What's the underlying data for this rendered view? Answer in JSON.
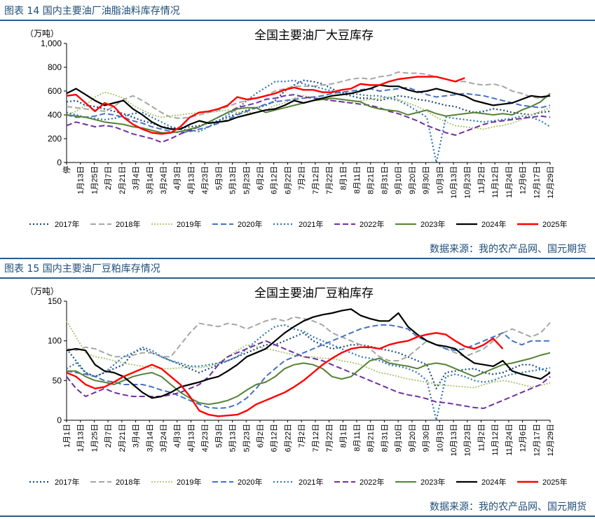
{
  "figures": [
    {
      "header": "图表 14 国内主要油厂油脂油料库存情况",
      "source": "数据来源：我的农产品网、国元期货"
    },
    {
      "header": "图表 15 国内主要油厂豆粕库存情况",
      "source": "数据来源：我的农产品网、国元期货"
    }
  ],
  "colors": {
    "2017年": "#1f4e79",
    "2018年": "#a6a6a6",
    "2019年": "#a9c26a",
    "2020年": "#4472c4",
    "2021年": "#2e75b6",
    "2022年": "#7030a0",
    "2023年": "#548235",
    "2024年": "#000000",
    "2025年": "#ff0000"
  },
  "chart_data": [
    {
      "type": "line",
      "title": "全国主要油厂大豆库存",
      "unit": "（万吨）",
      "ylim": [
        0,
        1000
      ],
      "yticks": [
        "0",
        "200",
        "400",
        "600",
        "800",
        "1,000"
      ],
      "ytick_values": [
        0,
        200,
        400,
        600,
        800,
        1000
      ],
      "x_count": 52,
      "xtick_labels": [
        "停",
        "1月13日",
        "1月25日",
        "2月7日",
        "2月21日",
        "3月4日",
        "3月14日",
        "3月24日",
        "4月3日",
        "4月13日",
        "4月23日",
        "5月3日",
        "5月13日",
        "5月23日",
        "6月2日",
        "6月12日",
        "6月22日",
        "7月2日",
        "7月12日",
        "7月22日",
        "8月1日",
        "8月11日",
        "8月21日",
        "8月31日",
        "9月10日",
        "9月20日",
        "9月30日",
        "10月3日",
        "10月13日",
        "10月23日",
        "11月2日",
        "11月12日",
        "11月24日",
        "12月6日",
        "12月17日",
        "12月29日"
      ],
      "series": [
        {
          "name": "2017年",
          "values": [
            510,
            520,
            480,
            470,
            450,
            430,
            410,
            380,
            350,
            330,
            300,
            290,
            290,
            300,
            310,
            330,
            350,
            380,
            410,
            440,
            460,
            480,
            520,
            600,
            650,
            690,
            680,
            660,
            620,
            580,
            560,
            540,
            540,
            520,
            540,
            560,
            550,
            530,
            520,
            500,
            480,
            470,
            440,
            420,
            430,
            450,
            440,
            420,
            410,
            400,
            420,
            430
          ]
        },
        {
          "name": "2018年",
          "values": [
            470,
            460,
            450,
            440,
            430,
            470,
            530,
            560,
            520,
            470,
            420,
            380,
            370,
            380,
            400,
            420,
            440,
            470,
            500,
            520,
            540,
            560,
            600,
            620,
            640,
            640,
            640,
            650,
            660,
            680,
            700,
            710,
            700,
            720,
            730,
            760,
            750,
            750,
            740,
            720,
            700,
            680,
            680,
            660,
            650,
            660,
            640,
            600,
            580,
            550,
            540,
            560
          ]
        },
        {
          "name": "2019年",
          "values": [
            400,
            430,
            480,
            550,
            590,
            570,
            540,
            480,
            440,
            400,
            380,
            390,
            400,
            410,
            420,
            420,
            430,
            440,
            420,
            420,
            420,
            440,
            480,
            500,
            540,
            560,
            550,
            540,
            520,
            510,
            500,
            520,
            530,
            540,
            550,
            530,
            500,
            470,
            430,
            380,
            340,
            310,
            300,
            290,
            280,
            300,
            310,
            330,
            360,
            400,
            430,
            460
          ]
        },
        {
          "name": "2020年",
          "values": [
            400,
            380,
            380,
            390,
            410,
            400,
            380,
            350,
            330,
            300,
            280,
            260,
            250,
            260,
            280,
            300,
            330,
            360,
            400,
            430,
            460,
            490,
            510,
            520,
            530,
            540,
            550,
            560,
            580,
            590,
            600,
            610,
            620,
            600,
            610,
            620,
            630,
            600,
            570,
            550,
            560,
            570,
            580,
            570,
            560,
            540,
            520,
            500,
            480,
            470,
            460,
            480
          ]
        },
        {
          "name": "2021年",
          "values": [
            420,
            400,
            380,
            370,
            360,
            370,
            390,
            410,
            420,
            380,
            340,
            300,
            280,
            270,
            260,
            300,
            350,
            400,
            450,
            520,
            580,
            630,
            680,
            680,
            690,
            660,
            640,
            620,
            600,
            590,
            580,
            570,
            560,
            560,
            540,
            520,
            480,
            430,
            380,
            0,
            380,
            370,
            360,
            350,
            340,
            350,
            360,
            370,
            390,
            380,
            350,
            300
          ]
        },
        {
          "name": "2022年",
          "values": [
            310,
            340,
            320,
            300,
            310,
            300,
            270,
            240,
            220,
            200,
            170,
            200,
            240,
            270,
            300,
            340,
            380,
            420,
            460,
            480,
            500,
            530,
            540,
            560,
            570,
            550,
            540,
            530,
            520,
            510,
            500,
            490,
            480,
            460,
            430,
            410,
            380,
            350,
            310,
            280,
            250,
            230,
            260,
            290,
            320,
            340,
            350,
            360,
            370,
            380,
            390,
            380
          ]
        },
        {
          "name": "2023年",
          "values": [
            400,
            390,
            380,
            360,
            340,
            330,
            320,
            300,
            290,
            270,
            250,
            250,
            260,
            280,
            300,
            340,
            380,
            420,
            450,
            460,
            460,
            420,
            440,
            460,
            480,
            500,
            520,
            530,
            540,
            530,
            520,
            510,
            470,
            450,
            440,
            430,
            400,
            420,
            440,
            410,
            390,
            400,
            410,
            420,
            410,
            400,
            410,
            400,
            440,
            470,
            510,
            580
          ]
        },
        {
          "name": "2024年",
          "values": [
            580,
            620,
            570,
            520,
            480,
            500,
            520,
            450,
            400,
            340,
            300,
            280,
            280,
            320,
            350,
            330,
            340,
            350,
            380,
            400,
            420,
            440,
            450,
            480,
            520,
            500,
            520,
            540,
            560,
            570,
            580,
            600,
            620,
            650,
            640,
            640,
            610,
            590,
            600,
            620,
            600,
            580,
            560,
            520,
            500,
            480,
            490,
            500,
            530,
            560,
            550,
            560
          ]
        },
        {
          "name": "2025年",
          "values": [
            560,
            570,
            500,
            430,
            500,
            470,
            380,
            320,
            280,
            250,
            240,
            250,
            300,
            380,
            420,
            430,
            450,
            480,
            550,
            530,
            540,
            560,
            580,
            610,
            630,
            610,
            610,
            590,
            590,
            610,
            620,
            660,
            650,
            650,
            680,
            700,
            710,
            720,
            720,
            720,
            700,
            680,
            710
          ]
        }
      ],
      "legend": [
        "2017年",
        "2018年",
        "2019年",
        "2020年",
        "2021年",
        "2022年",
        "2023年",
        "2024年",
        "2025年"
      ]
    },
    {
      "type": "line",
      "title": "全国主要油厂豆粕库存",
      "unit": "（万吨）",
      "ylim": [
        0,
        150
      ],
      "yticks": [
        "0",
        "50",
        "100",
        "150"
      ],
      "ytick_values": [
        0,
        50,
        100,
        150
      ],
      "x_count": 52,
      "xtick_labels": [
        "1月1日",
        "1月13日",
        "1月25日",
        "2月7日",
        "2月21日",
        "3月4日",
        "3月14日",
        "3月24日",
        "4月3日",
        "4月13日",
        "4月23日",
        "5月3日",
        "5月13日",
        "5月23日",
        "6月2日",
        "6月12日",
        "6月22日",
        "7月2日",
        "7月12日",
        "7月22日",
        "8月1日",
        "8月11日",
        "8月21日",
        "8月31日",
        "9月10日",
        "9月20日",
        "9月30日",
        "10月3日",
        "10月13日",
        "10月23日",
        "11月2日",
        "11月12日",
        "11月24日",
        "12月6日",
        "12月17日",
        "12月29日"
      ],
      "series": [
        {
          "name": "2017年",
          "values": [
            90,
            75,
            60,
            55,
            60,
            65,
            70,
            85,
            90,
            85,
            80,
            75,
            70,
            65,
            60,
            65,
            70,
            75,
            80,
            85,
            90,
            95,
            95,
            100,
            105,
            110,
            100,
            95,
            90,
            92,
            95,
            95,
            93,
            90,
            88,
            85,
            80,
            75,
            70,
            40,
            60,
            62,
            64,
            65,
            60,
            58,
            60,
            65,
            70,
            70,
            65,
            60
          ]
        },
        {
          "name": "2018年",
          "values": [
            90,
            88,
            92,
            90,
            85,
            80,
            80,
            82,
            85,
            85,
            80,
            80,
            95,
            110,
            122,
            120,
            118,
            122,
            120,
            115,
            120,
            125,
            128,
            125,
            130,
            128,
            125,
            120,
            110,
            105,
            100,
            95,
            90,
            80,
            75,
            75,
            80,
            90,
            100,
            95,
            90,
            85,
            80,
            85,
            90,
            100,
            110,
            115,
            110,
            105,
            110,
            123
          ]
        },
        {
          "name": "2019年",
          "values": [
            125,
            105,
            85,
            80,
            78,
            75,
            72,
            70,
            68,
            66,
            65,
            65,
            66,
            67,
            66,
            68,
            72,
            80,
            88,
            95,
            93,
            90,
            88,
            85,
            82,
            80,
            80,
            78,
            78,
            75,
            73,
            70,
            65,
            60,
            58,
            55,
            52,
            50,
            48,
            45,
            44,
            43,
            42,
            41,
            45,
            48,
            50,
            48,
            45,
            42,
            44,
            47
          ]
        },
        {
          "name": "2020年",
          "values": [
            62,
            60,
            58,
            55,
            50,
            48,
            45,
            45,
            45,
            42,
            38,
            35,
            30,
            25,
            20,
            16,
            15,
            16,
            20,
            28,
            40,
            55,
            65,
            75,
            80,
            85,
            90,
            95,
            100,
            105,
            110,
            115,
            118,
            120,
            120,
            118,
            115,
            105,
            100,
            95,
            90,
            88,
            90,
            95,
            100,
            105,
            110,
            100,
            95,
            100,
            100,
            100
          ]
        },
        {
          "name": "2021年",
          "values": [
            65,
            72,
            60,
            55,
            60,
            70,
            80,
            85,
            92,
            88,
            80,
            75,
            72,
            68,
            68,
            70,
            72,
            75,
            80,
            90,
            100,
            110,
            118,
            120,
            115,
            112,
            105,
            100,
            95,
            90,
            85,
            80,
            78,
            75,
            70,
            68,
            65,
            60,
            50,
            0,
            55,
            58,
            55,
            50,
            48,
            50,
            55,
            58,
            60,
            62,
            64,
            66
          ]
        },
        {
          "name": "2022年",
          "values": [
            55,
            40,
            30,
            35,
            40,
            35,
            32,
            30,
            30,
            30,
            30,
            32,
            35,
            40,
            45,
            55,
            70,
            80,
            85,
            90,
            95,
            100,
            95,
            90,
            85,
            80,
            78,
            75,
            70,
            65,
            60,
            55,
            50,
            45,
            40,
            35,
            32,
            30,
            27,
            23,
            22,
            20,
            18,
            16,
            15,
            20,
            25,
            30,
            35,
            40,
            45,
            55
          ]
        },
        {
          "name": "2023年",
          "values": [
            62,
            62,
            55,
            50,
            48,
            45,
            50,
            55,
            58,
            60,
            55,
            45,
            35,
            28,
            22,
            20,
            22,
            25,
            30,
            38,
            45,
            48,
            55,
            65,
            70,
            72,
            70,
            65,
            55,
            52,
            55,
            65,
            75,
            78,
            72,
            70,
            68,
            65,
            70,
            72,
            70,
            65,
            60,
            55,
            60,
            65,
            70,
            72,
            75,
            78,
            82,
            85
          ]
        },
        {
          "name": "2024年",
          "values": [
            88,
            90,
            88,
            70,
            62,
            60,
            55,
            45,
            35,
            28,
            30,
            35,
            42,
            45,
            48,
            52,
            55,
            62,
            70,
            80,
            85,
            90,
            100,
            110,
            118,
            125,
            130,
            133,
            135,
            138,
            140,
            132,
            128,
            125,
            125,
            135,
            118,
            108,
            100,
            95,
            93,
            90,
            80,
            72,
            70,
            68,
            75,
            62,
            58,
            55,
            52,
            60
          ]
        },
        {
          "name": "2025年",
          "values": [
            60,
            55,
            45,
            40,
            42,
            48,
            55,
            60,
            65,
            70,
            65,
            55,
            45,
            30,
            12,
            7,
            5,
            6,
            7,
            12,
            20,
            25,
            30,
            35,
            42,
            50,
            60,
            70,
            78,
            85,
            90,
            92,
            92,
            90,
            95,
            98,
            100,
            105,
            108,
            110,
            108,
            100,
            93,
            90,
            95,
            103,
            90
          ]
        }
      ],
      "legend": [
        "2017年",
        "2018年",
        "2019年",
        "2020年",
        "2021年",
        "2022年",
        "2023年",
        "2024年",
        "2025年"
      ]
    }
  ]
}
